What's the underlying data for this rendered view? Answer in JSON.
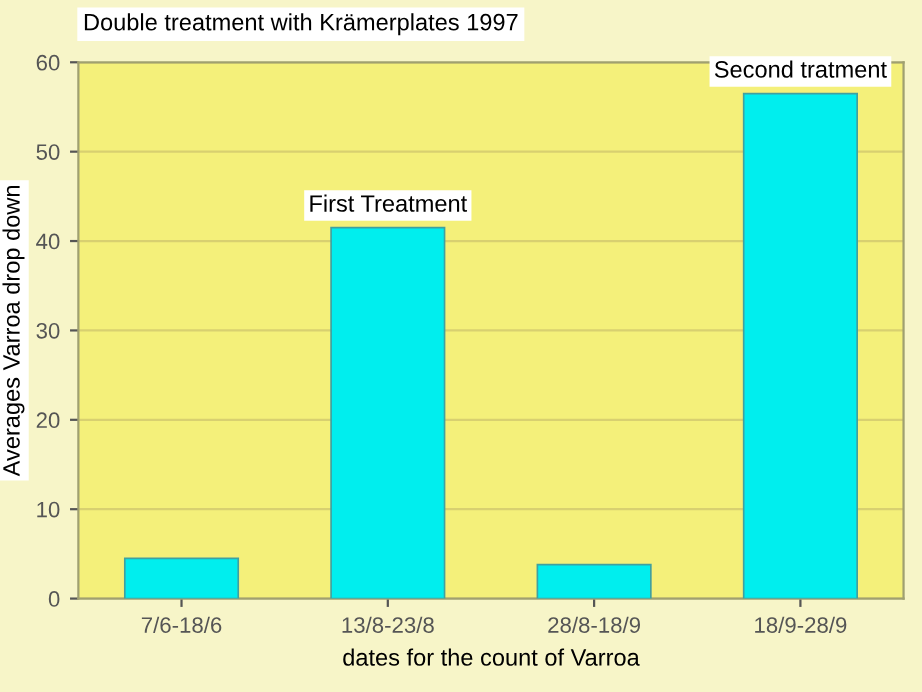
{
  "chart_data": {
    "type": "bar",
    "title": "Double treatment with Krämerplates 1997",
    "xlabel": "dates for the count of Varroa",
    "ylabel": "Averages Varroa drop down",
    "categories": [
      "7/6-18/6",
      "13/8-23/8",
      "28/8-18/9",
      "18/9-28/9"
    ],
    "values": [
      4.5,
      41.5,
      3.8,
      56.5
    ],
    "color": "#00eeee",
    "ylim": [
      0,
      60
    ],
    "yticks": [
      0,
      10,
      20,
      30,
      40,
      50,
      60
    ],
    "grid": "y",
    "annotations": [
      {
        "text": "First Treatment",
        "x": "13/8-23/8",
        "y": 41.5
      },
      {
        "text": "Second tratment",
        "x": "18/9-28/9",
        "y": 56.5
      }
    ]
  }
}
